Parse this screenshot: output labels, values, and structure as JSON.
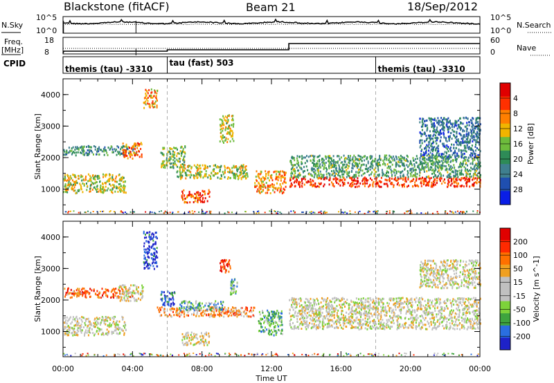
{
  "header": {
    "station": "Blackstone (fitACF)",
    "beam": "Beam 21",
    "date": "18/Sep/2012"
  },
  "left_labels": {
    "nsky": "N.Sky",
    "freq_a": "Freq.",
    "freq_b": "[MHz]",
    "cpid": "CPID"
  },
  "right_labels": {
    "nsearch": "N.Search",
    "nave": "Nave"
  },
  "noise_ticks": {
    "left_top": "10^5",
    "left_bottom": "10^0",
    "right_top": "10^5",
    "right_bottom": "10^0"
  },
  "freq_ticks": {
    "left_top": "18",
    "left_bottom": "8",
    "right_top": "60",
    "right_bottom": "0"
  },
  "cpid_segments": [
    {
      "label": "themis (tau) -3310",
      "start_hour": 0.0,
      "end_hour": 6.0
    },
    {
      "label": "tau (fast) 503",
      "start_hour": 6.0,
      "end_hour": 18.0
    },
    {
      "label": "themis (tau) -3310",
      "start_hour": 18.0,
      "end_hour": 24.0
    }
  ],
  "colors": {
    "power": [
      "#0a1ee6",
      "#1f4fb0",
      "#3f7f8f",
      "#2e8b57",
      "#6dbb3c",
      "#f0b400",
      "#ff7f00",
      "#ff3000",
      "#e00000"
    ],
    "velocity": [
      "#1e22c8",
      "#2a6ee0",
      "#3ea43e",
      "#7dd23a",
      "#c0c0c0",
      "#c0c0c0",
      "#f0a020",
      "#ff7000",
      "#ff2a00",
      "#e00000"
    ]
  },
  "chart_data": [
    {
      "type": "heatmap",
      "name": "power",
      "ylabel": "Slant Range [km]",
      "ylim": [
        200,
        4500
      ],
      "xlim_hours": [
        0,
        24
      ],
      "yticks": [
        "1000",
        "2000",
        "3000",
        "4000"
      ],
      "colorbar": {
        "label": "Power [dB]",
        "ticks": [
          "4",
          "8",
          "12",
          "16",
          "20",
          "24",
          "28"
        ]
      },
      "features": [
        {
          "start_hour": 0.0,
          "end_hour": 3.6,
          "range_low": 900,
          "range_high": 1500,
          "level": 0.55
        },
        {
          "start_hour": 0.0,
          "end_hour": 4.2,
          "range_low": 2100,
          "range_high": 2400,
          "level": 0.35
        },
        {
          "start_hour": 3.4,
          "end_hour": 4.5,
          "range_low": 2000,
          "range_high": 2500,
          "level": 0.75
        },
        {
          "start_hour": 4.6,
          "end_hour": 5.4,
          "range_low": 3600,
          "range_high": 4200,
          "level": 0.7
        },
        {
          "start_hour": 5.6,
          "end_hour": 7.0,
          "range_low": 1700,
          "range_high": 2400,
          "level": 0.45
        },
        {
          "start_hour": 6.8,
          "end_hour": 8.4,
          "range_low": 600,
          "range_high": 1000,
          "level": 0.8
        },
        {
          "start_hour": 6.5,
          "end_hour": 10.6,
          "range_low": 1350,
          "range_high": 1800,
          "level": 0.55
        },
        {
          "start_hour": 9.0,
          "end_hour": 9.8,
          "range_low": 2500,
          "range_high": 3400,
          "level": 0.6
        },
        {
          "start_hour": 11.0,
          "end_hour": 12.8,
          "range_low": 900,
          "range_high": 1600,
          "level": 0.7
        },
        {
          "start_hour": 13.0,
          "end_hour": 24.0,
          "range_low": 1100,
          "range_high": 1400,
          "level": 0.85
        },
        {
          "start_hour": 13.0,
          "end_hour": 24.0,
          "range_low": 1400,
          "range_high": 2100,
          "level": 0.4
        },
        {
          "start_hour": 20.5,
          "end_hour": 24.0,
          "range_low": 2000,
          "range_high": 3300,
          "level": 0.25
        }
      ]
    },
    {
      "type": "heatmap",
      "name": "velocity",
      "ylabel": "Slant Range [km]",
      "xlabel": "Time UT",
      "ylim": [
        200,
        4500
      ],
      "xlim_hours": [
        0,
        24
      ],
      "yticks": [
        "1000",
        "2000",
        "3000",
        "4000"
      ],
      "xticks": [
        "00:00",
        "04:00",
        "08:00",
        "12:00",
        "16:00",
        "20:00",
        "00:00"
      ],
      "colorbar": {
        "label": "Velocity [m s^-1]",
        "ticks": [
          "200",
          "100",
          "50",
          "15",
          "-15",
          "-50",
          "-100",
          "-200"
        ]
      },
      "features": [
        {
          "start_hour": 0.0,
          "end_hour": 3.6,
          "range_low": 900,
          "range_high": 1500,
          "level": 0.5
        },
        {
          "start_hour": 0.0,
          "end_hour": 4.0,
          "range_low": 2100,
          "range_high": 2400,
          "level": 0.75
        },
        {
          "start_hour": 3.2,
          "end_hour": 4.6,
          "range_low": 2000,
          "range_high": 2500,
          "level": 0.5
        },
        {
          "start_hour": 4.6,
          "end_hour": 5.4,
          "range_low": 3000,
          "range_high": 4200,
          "level": 0.05
        },
        {
          "start_hour": 5.6,
          "end_hour": 6.4,
          "range_low": 1800,
          "range_high": 2300,
          "level": 0.1
        },
        {
          "start_hour": 5.4,
          "end_hour": 11.0,
          "range_low": 1500,
          "range_high": 1800,
          "level": 0.7
        },
        {
          "start_hour": 6.6,
          "end_hour": 9.2,
          "range_low": 1700,
          "range_high": 2000,
          "level": 0.3
        },
        {
          "start_hour": 6.8,
          "end_hour": 8.4,
          "range_low": 600,
          "range_high": 1000,
          "level": 0.5
        },
        {
          "start_hour": 9.0,
          "end_hour": 9.6,
          "range_low": 2900,
          "range_high": 3300,
          "level": 0.85
        },
        {
          "start_hour": 9.6,
          "end_hour": 10.0,
          "range_low": 2200,
          "range_high": 2700,
          "level": 0.3
        },
        {
          "start_hour": 11.2,
          "end_hour": 12.6,
          "range_low": 900,
          "range_high": 1700,
          "level": 0.3
        },
        {
          "start_hour": 13.0,
          "end_hour": 24.0,
          "range_low": 1100,
          "range_high": 2100,
          "level": 0.5
        },
        {
          "start_hour": 20.5,
          "end_hour": 24.0,
          "range_low": 2400,
          "range_high": 3300,
          "level": 0.5
        }
      ]
    }
  ]
}
